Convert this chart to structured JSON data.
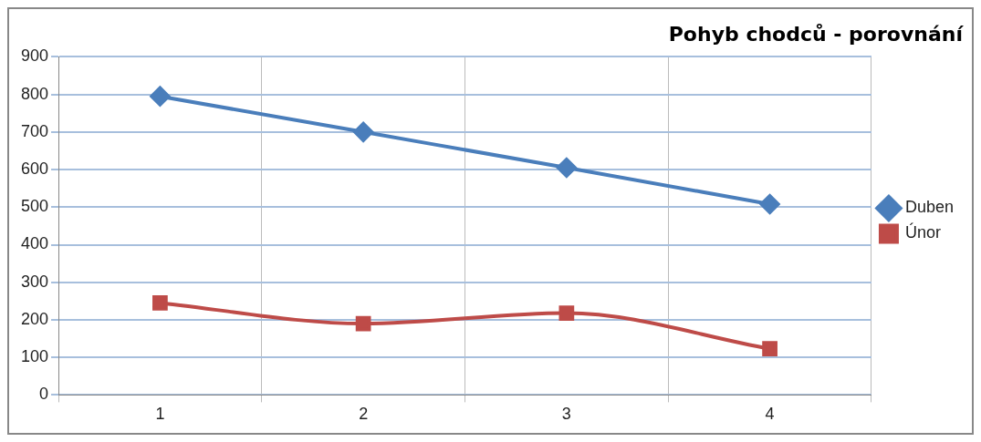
{
  "chart_data": {
    "type": "line",
    "title": "Pohyb chodců - porovnání",
    "categories": [
      "1",
      "2",
      "3",
      "4"
    ],
    "series": [
      {
        "name": "Duben",
        "color": "#4a7ebb",
        "values": [
          795,
          700,
          605,
          508
        ],
        "marker": "diamond"
      },
      {
        "name": "Únor",
        "color": "#be4b48",
        "values": [
          245,
          190,
          218,
          123
        ],
        "marker": "square"
      }
    ],
    "ylim": [
      0,
      900
    ],
    "yticks": [
      0,
      100,
      200,
      300,
      400,
      500,
      600,
      700,
      800,
      900
    ],
    "grid": true,
    "legend": "right"
  }
}
